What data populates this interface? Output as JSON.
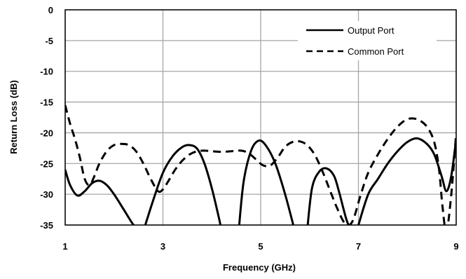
{
  "chart_data": {
    "type": "line",
    "xlabel": "Frequency (GHz)",
    "ylabel": "Return Loss (dB)",
    "xlim": [
      1,
      9
    ],
    "ylim": [
      -35,
      0
    ],
    "x_ticks": [
      1,
      3,
      5,
      7,
      9
    ],
    "y_ticks": [
      0,
      -5,
      -10,
      -15,
      -20,
      -25,
      -30,
      -35
    ],
    "x_tick_labels": [
      "1",
      "3",
      "5",
      "7",
      "9"
    ],
    "y_tick_labels": [
      "0",
      "-5",
      "-10",
      "-15",
      "-20",
      "-25",
      "-30",
      "-35"
    ],
    "grid": true,
    "legend_position": "top-right",
    "series": [
      {
        "name": "Output Port",
        "style": "solid",
        "color": "#000000",
        "x": [
          1.0,
          1.1,
          1.25,
          1.4,
          1.55,
          1.7,
          1.85,
          2.0,
          2.2,
          2.4,
          2.55,
          2.6
        ],
        "y": [
          -26,
          -28.5,
          -30.2,
          -29.5,
          -28.2,
          -27.8,
          -28.5,
          -30,
          -32.5,
          -35,
          -36,
          -36
        ],
        "segments": [
          {
            "x": [
              1.0,
              1.1,
              1.25,
              1.4,
              1.55,
              1.7,
              1.85,
              2.0,
              2.2,
              2.4,
              2.55
            ],
            "y": [
              -26,
              -28.5,
              -30.2,
              -29.5,
              -28.2,
              -27.8,
              -28.5,
              -30,
              -32.5,
              -35,
              -36
            ]
          },
          {
            "x": [
              2.6,
              2.8,
              3.0,
              3.2,
              3.4,
              3.55,
              3.7,
              3.85,
              4.0,
              4.15,
              4.2
            ],
            "y": [
              -36,
              -31,
              -26.5,
              -23.8,
              -22.3,
              -22.0,
              -22.6,
              -25,
              -29,
              -34,
              -36
            ]
          },
          {
            "x": [
              4.55,
              4.65,
              4.8,
              4.95,
              5.1,
              5.3,
              5.5,
              5.7
            ],
            "y": [
              -36,
              -28,
              -23,
              -21.3,
              -22,
              -25,
              -30,
              -36
            ]
          },
          {
            "x": [
              5.95,
              6.05,
              6.2,
              6.35,
              6.5,
              6.6,
              6.75,
              6.85
            ],
            "y": [
              -36,
              -29,
              -26.3,
              -25.8,
              -27,
              -29.5,
              -34,
              -36
            ]
          },
          {
            "x": [
              7.0,
              7.2,
              7.4,
              7.6,
              7.8,
              8.0,
              8.2,
              8.4,
              8.55,
              8.7,
              8.8,
              8.9,
              9.0
            ],
            "y": [
              -35,
              -30,
              -27.5,
              -25,
              -23,
              -21.5,
              -20.9,
              -21.8,
              -23.5,
              -27,
              -29.5,
              -27,
              -21
            ]
          }
        ]
      },
      {
        "name": "Common Port",
        "style": "dashed",
        "color": "#000000",
        "segments": [
          {
            "x": [
              1.0,
              1.1,
              1.2,
              1.3,
              1.4,
              1.5,
              1.6,
              1.7,
              1.85,
              2.0,
              2.15,
              2.3,
              2.45,
              2.6,
              2.75,
              2.9,
              3.0,
              3.1,
              3.25,
              3.4,
              3.55,
              3.7,
              3.85,
              4.0,
              4.2,
              4.4,
              4.6,
              4.75,
              4.9,
              5.05,
              5.2,
              5.35,
              5.5,
              5.65,
              5.8,
              5.95,
              6.1,
              6.25,
              6.4,
              6.55,
              6.7,
              6.8,
              6.9,
              7.05,
              7.2,
              7.4,
              7.6,
              7.8,
              8.0,
              8.2,
              8.4,
              8.55,
              8.65,
              8.72,
              8.8,
              8.9,
              9.0
            ],
            "y": [
              -15.5,
              -18.5,
              -21,
              -24,
              -27.5,
              -28.5,
              -27,
              -25,
              -23,
              -22,
              -21.8,
              -22,
              -23,
              -25,
              -27.5,
              -29.5,
              -29.2,
              -28,
              -26,
              -24.5,
              -23.5,
              -23,
              -22.9,
              -23,
              -23.1,
              -23.0,
              -22.9,
              -23.3,
              -24.3,
              -25.3,
              -25.3,
              -24,
              -22.3,
              -21.5,
              -21.4,
              -22,
              -23.5,
              -26,
              -29,
              -32,
              -34.5,
              -35,
              -34,
              -30,
              -26.5,
              -23.5,
              -21,
              -19,
              -17.8,
              -17.8,
              -19,
              -21.5,
              -26,
              -32,
              -36,
              -30,
              -20
            ]
          }
        ]
      }
    ]
  }
}
